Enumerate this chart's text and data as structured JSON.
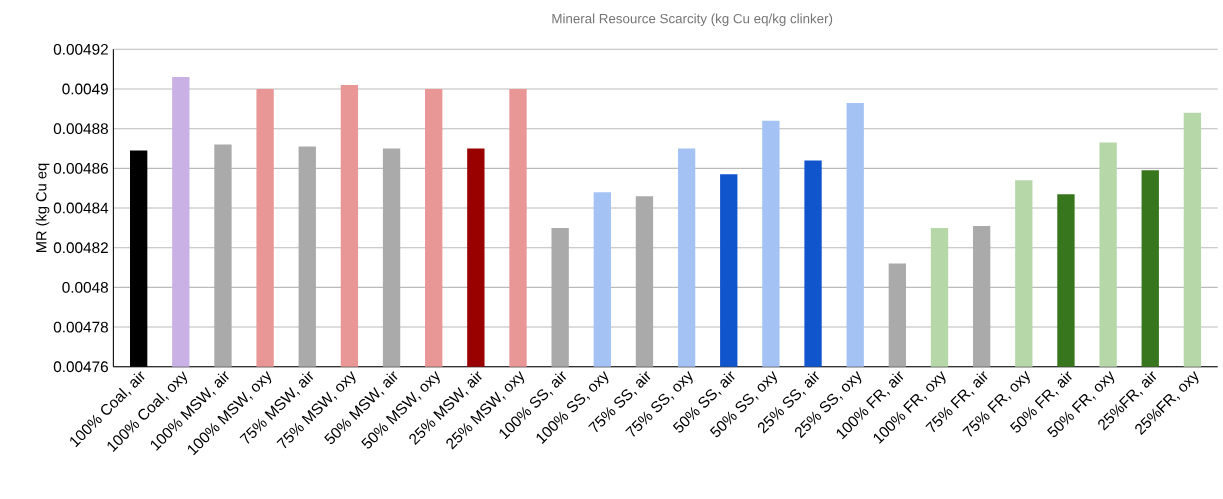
{
  "chart_data": {
    "type": "bar",
    "title": "Mineral Resource Scarcity (kg Cu eq/kg clinker)",
    "ylabel": "MR (kg Cu eq",
    "categories": [
      "100% Coal, air",
      "100% Coal, oxy",
      "100% MSW, air",
      "100% MSW, oxy",
      "75% MSW, air",
      "75% MSW, oxy",
      "50% MSW, air",
      "50% MSW, oxy",
      "25% MSW, air",
      "25% MSW, oxy",
      "100% SS, air",
      "100% SS, oxy",
      "75% SS, air",
      "75% SS, oxy",
      "50% SS, air",
      "50% SS, oxy",
      "25% SS, air",
      "25% SS, oxy",
      "100% FR, air",
      "100% FR, oxy",
      "75% FR, air",
      "75% FR, oxy",
      "50% FR, air",
      "50% FR, oxy",
      "25%FR, air",
      "25%FR, oxy"
    ],
    "values": [
      0.004869,
      0.004906,
      0.004872,
      0.0049,
      0.004871,
      0.004902,
      0.00487,
      0.0049,
      0.00487,
      0.0049,
      0.00483,
      0.004848,
      0.004846,
      0.00487,
      0.004857,
      0.004884,
      0.004864,
      0.004893,
      0.004812,
      0.00483,
      0.004831,
      0.004854,
      0.004847,
      0.004873,
      0.004859,
      0.004888
    ],
    "colors": [
      "#000000",
      "#c9b1e6",
      "#aaaaaa",
      "#e99696",
      "#aaaaaa",
      "#e99696",
      "#aaaaaa",
      "#e99696",
      "#990000",
      "#e99696",
      "#aaaaaa",
      "#a4c2f4",
      "#aaaaaa",
      "#a4c2f4",
      "#1155cc",
      "#a4c2f4",
      "#1155cc",
      "#a4c2f4",
      "#aaaaaa",
      "#b6d7a8",
      "#aaaaaa",
      "#b6d7a8",
      "#38761d",
      "#b6d7a8",
      "#38761d",
      "#b6d7a8"
    ],
    "ylim": [
      0.00476,
      0.00492
    ],
    "yticks": [
      0.00476,
      0.00478,
      0.0048,
      0.00482,
      0.00484,
      0.00486,
      0.00488,
      0.0049,
      0.00492
    ],
    "grid": "y"
  }
}
